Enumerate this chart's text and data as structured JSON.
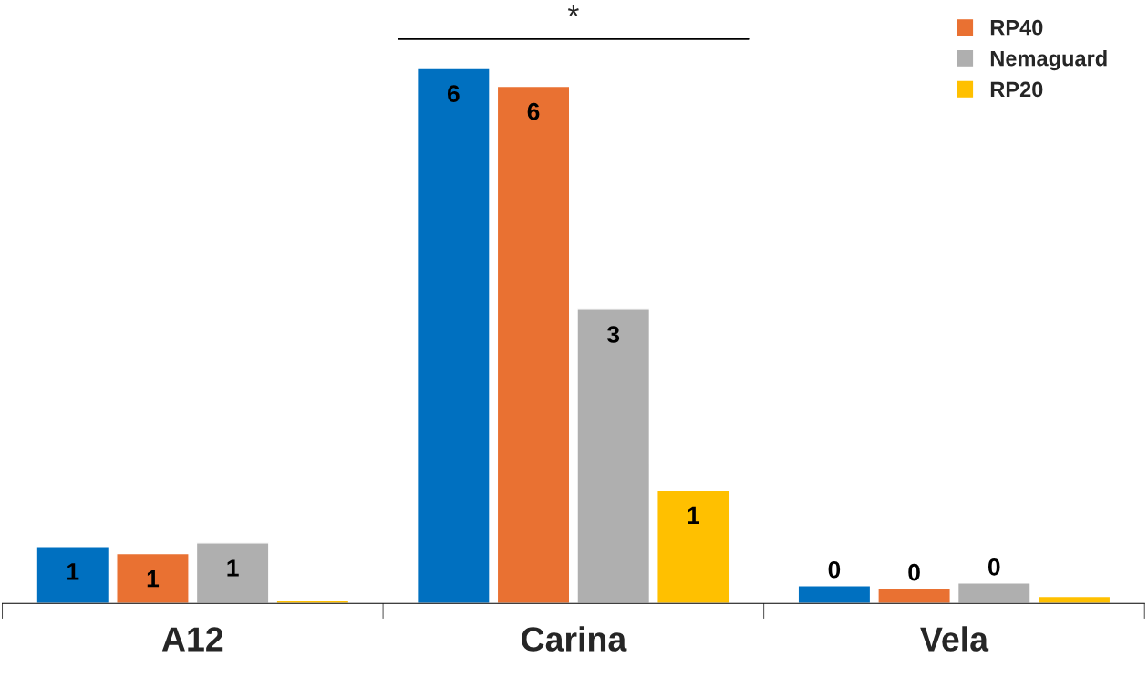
{
  "chart_data": {
    "type": "bar",
    "categories": [
      "A12",
      "Carina",
      "Vela"
    ],
    "series": [
      {
        "color": "#0070c0",
        "values": [
          0.64,
          6.0,
          0.2
        ],
        "value_labels": [
          "1",
          "6",
          "0"
        ]
      },
      {
        "name": "RP40",
        "color": "#e97132",
        "values": [
          0.56,
          5.8,
          0.17
        ],
        "value_labels": [
          "1",
          "6",
          "0"
        ]
      },
      {
        "name": "Nemaguard",
        "color": "#afafaf",
        "values": [
          0.68,
          3.3,
          0.23
        ],
        "value_labels": [
          "1",
          "3",
          "0"
        ]
      },
      {
        "name": "RP20",
        "color": "#ffc000",
        "values": [
          0.03,
          1.27,
          0.08
        ],
        "value_labels": [
          null,
          "1",
          null
        ]
      }
    ],
    "annotations": [
      "*"
    ],
    "legend": "top right",
    "grid": false
  }
}
